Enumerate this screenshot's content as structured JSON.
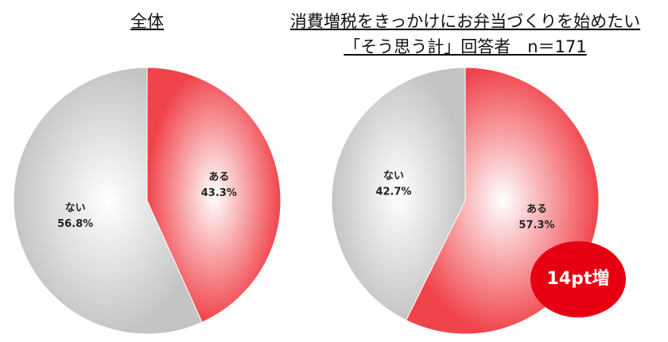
{
  "chart_data": [
    {
      "type": "pie",
      "title": "全体",
      "categories": [
        "ある",
        "ない"
      ],
      "values": [
        43.3,
        56.8
      ],
      "value_labels": [
        "43.3%",
        "56.8%"
      ],
      "colors": [
        "#f0444b",
        "#c4c4c4"
      ]
    },
    {
      "type": "pie",
      "title": "消費増税をきっかけにお弁当づくりを始めたい",
      "subtitle": "「そう思う計」回答者　n＝171",
      "categories": [
        "ある",
        "ない"
      ],
      "values": [
        57.3,
        42.7
      ],
      "value_labels": [
        "57.3%",
        "42.7%"
      ],
      "colors": [
        "#f0444b",
        "#c4c4c4"
      ],
      "annotation": "14pt増"
    }
  ]
}
